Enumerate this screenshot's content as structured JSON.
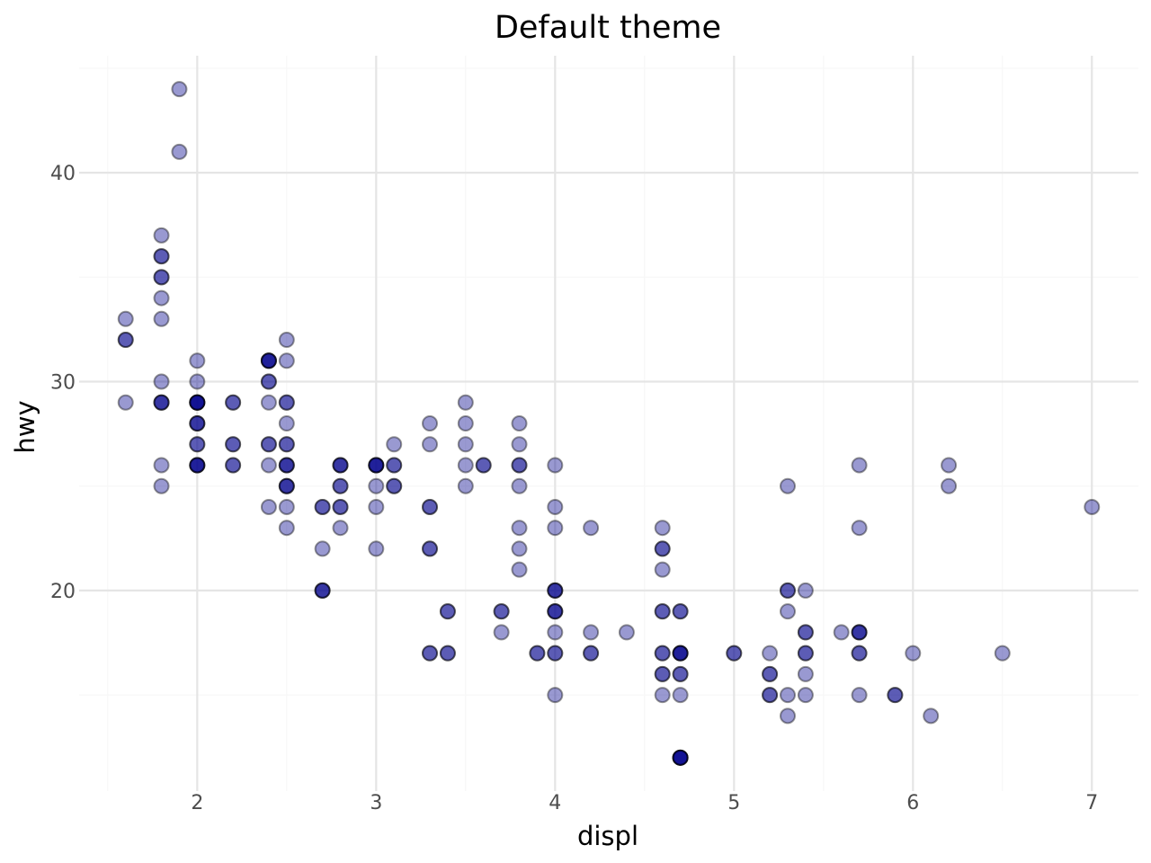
{
  "chart_data": {
    "type": "scatter",
    "title": "Default theme",
    "xlabel": "displ",
    "ylabel": "hwy",
    "xlim": [
      1.34,
      7.26
    ],
    "ylim": [
      10.4,
      45.6
    ],
    "x_ticks": [
      2,
      3,
      4,
      5,
      6,
      7
    ],
    "y_ticks": [
      20,
      30,
      40
    ],
    "grid": true,
    "point_color": "#00008b",
    "point_alpha": 0.4,
    "points": [
      {
        "x": 1.9,
        "y": 44
      },
      {
        "x": 1.9,
        "y": 41
      },
      {
        "x": 1.8,
        "y": 37
      },
      {
        "x": 1.8,
        "y": 36
      },
      {
        "x": 1.8,
        "y": 36
      },
      {
        "x": 1.8,
        "y": 35
      },
      {
        "x": 1.8,
        "y": 35
      },
      {
        "x": 1.8,
        "y": 34
      },
      {
        "x": 1.8,
        "y": 33
      },
      {
        "x": 1.6,
        "y": 33
      },
      {
        "x": 1.6,
        "y": 32
      },
      {
        "x": 1.6,
        "y": 32
      },
      {
        "x": 1.6,
        "y": 29
      },
      {
        "x": 1.8,
        "y": 30
      },
      {
        "x": 1.8,
        "y": 29
      },
      {
        "x": 1.8,
        "y": 29
      },
      {
        "x": 1.8,
        "y": 29
      },
      {
        "x": 1.8,
        "y": 26
      },
      {
        "x": 1.8,
        "y": 25
      },
      {
        "x": 2.0,
        "y": 31
      },
      {
        "x": 2.0,
        "y": 30
      },
      {
        "x": 2.0,
        "y": 29
      },
      {
        "x": 2.0,
        "y": 29
      },
      {
        "x": 2.0,
        "y": 29
      },
      {
        "x": 2.0,
        "y": 29
      },
      {
        "x": 2.0,
        "y": 29
      },
      {
        "x": 2.0,
        "y": 28
      },
      {
        "x": 2.0,
        "y": 28
      },
      {
        "x": 2.0,
        "y": 28
      },
      {
        "x": 2.0,
        "y": 27
      },
      {
        "x": 2.0,
        "y": 27
      },
      {
        "x": 2.0,
        "y": 26
      },
      {
        "x": 2.0,
        "y": 26
      },
      {
        "x": 2.0,
        "y": 26
      },
      {
        "x": 2.0,
        "y": 26
      },
      {
        "x": 2.2,
        "y": 29
      },
      {
        "x": 2.2,
        "y": 29
      },
      {
        "x": 2.2,
        "y": 27
      },
      {
        "x": 2.2,
        "y": 27
      },
      {
        "x": 2.2,
        "y": 26
      },
      {
        "x": 2.2,
        "y": 26
      },
      {
        "x": 2.4,
        "y": 31
      },
      {
        "x": 2.4,
        "y": 31
      },
      {
        "x": 2.4,
        "y": 31
      },
      {
        "x": 2.4,
        "y": 31
      },
      {
        "x": 2.4,
        "y": 30
      },
      {
        "x": 2.4,
        "y": 30
      },
      {
        "x": 2.4,
        "y": 29
      },
      {
        "x": 2.4,
        "y": 27
      },
      {
        "x": 2.4,
        "y": 27
      },
      {
        "x": 2.4,
        "y": 26
      },
      {
        "x": 2.4,
        "y": 24
      },
      {
        "x": 2.5,
        "y": 32
      },
      {
        "x": 2.5,
        "y": 31
      },
      {
        "x": 2.5,
        "y": 29
      },
      {
        "x": 2.5,
        "y": 29
      },
      {
        "x": 2.5,
        "y": 28
      },
      {
        "x": 2.5,
        "y": 27
      },
      {
        "x": 2.5,
        "y": 27
      },
      {
        "x": 2.5,
        "y": 26
      },
      {
        "x": 2.5,
        "y": 26
      },
      {
        "x": 2.5,
        "y": 26
      },
      {
        "x": 2.5,
        "y": 25
      },
      {
        "x": 2.5,
        "y": 25
      },
      {
        "x": 2.5,
        "y": 25
      },
      {
        "x": 2.5,
        "y": 24
      },
      {
        "x": 2.5,
        "y": 23
      },
      {
        "x": 2.7,
        "y": 24
      },
      {
        "x": 2.7,
        "y": 24
      },
      {
        "x": 2.7,
        "y": 22
      },
      {
        "x": 2.7,
        "y": 20
      },
      {
        "x": 2.7,
        "y": 20
      },
      {
        "x": 2.7,
        "y": 20
      },
      {
        "x": 2.8,
        "y": 26
      },
      {
        "x": 2.8,
        "y": 26
      },
      {
        "x": 2.8,
        "y": 26
      },
      {
        "x": 2.8,
        "y": 25
      },
      {
        "x": 2.8,
        "y": 25
      },
      {
        "x": 2.8,
        "y": 24
      },
      {
        "x": 2.8,
        "y": 24
      },
      {
        "x": 2.8,
        "y": 23
      },
      {
        "x": 3.0,
        "y": 26
      },
      {
        "x": 3.0,
        "y": 26
      },
      {
        "x": 3.0,
        "y": 26
      },
      {
        "x": 3.0,
        "y": 26
      },
      {
        "x": 3.0,
        "y": 25
      },
      {
        "x": 3.0,
        "y": 24
      },
      {
        "x": 3.0,
        "y": 22
      },
      {
        "x": 3.1,
        "y": 27
      },
      {
        "x": 3.1,
        "y": 26
      },
      {
        "x": 3.1,
        "y": 26
      },
      {
        "x": 3.1,
        "y": 25
      },
      {
        "x": 3.1,
        "y": 25
      },
      {
        "x": 3.3,
        "y": 28
      },
      {
        "x": 3.3,
        "y": 27
      },
      {
        "x": 3.3,
        "y": 24
      },
      {
        "x": 3.3,
        "y": 24
      },
      {
        "x": 3.3,
        "y": 22
      },
      {
        "x": 3.3,
        "y": 22
      },
      {
        "x": 3.3,
        "y": 17
      },
      {
        "x": 3.3,
        "y": 17
      },
      {
        "x": 3.4,
        "y": 19
      },
      {
        "x": 3.4,
        "y": 19
      },
      {
        "x": 3.4,
        "y": 17
      },
      {
        "x": 3.4,
        "y": 17
      },
      {
        "x": 3.5,
        "y": 29
      },
      {
        "x": 3.5,
        "y": 28
      },
      {
        "x": 3.5,
        "y": 27
      },
      {
        "x": 3.5,
        "y": 26
      },
      {
        "x": 3.5,
        "y": 25
      },
      {
        "x": 3.6,
        "y": 26
      },
      {
        "x": 3.6,
        "y": 26
      },
      {
        "x": 3.7,
        "y": 19
      },
      {
        "x": 3.7,
        "y": 19
      },
      {
        "x": 3.7,
        "y": 18
      },
      {
        "x": 3.8,
        "y": 28
      },
      {
        "x": 3.8,
        "y": 27
      },
      {
        "x": 3.8,
        "y": 26
      },
      {
        "x": 3.8,
        "y": 26
      },
      {
        "x": 3.8,
        "y": 25
      },
      {
        "x": 3.8,
        "y": 23
      },
      {
        "x": 3.8,
        "y": 22
      },
      {
        "x": 3.8,
        "y": 21
      },
      {
        "x": 3.9,
        "y": 17
      },
      {
        "x": 3.9,
        "y": 17
      },
      {
        "x": 4.0,
        "y": 26
      },
      {
        "x": 4.0,
        "y": 24
      },
      {
        "x": 4.0,
        "y": 23
      },
      {
        "x": 4.0,
        "y": 20
      },
      {
        "x": 4.0,
        "y": 20
      },
      {
        "x": 4.0,
        "y": 20
      },
      {
        "x": 4.0,
        "y": 19
      },
      {
        "x": 4.0,
        "y": 19
      },
      {
        "x": 4.0,
        "y": 19
      },
      {
        "x": 4.0,
        "y": 18
      },
      {
        "x": 4.0,
        "y": 17
      },
      {
        "x": 4.0,
        "y": 17
      },
      {
        "x": 4.0,
        "y": 15
      },
      {
        "x": 4.2,
        "y": 23
      },
      {
        "x": 4.2,
        "y": 18
      },
      {
        "x": 4.2,
        "y": 17
      },
      {
        "x": 4.2,
        "y": 17
      },
      {
        "x": 4.4,
        "y": 18
      },
      {
        "x": 4.6,
        "y": 23
      },
      {
        "x": 4.6,
        "y": 22
      },
      {
        "x": 4.6,
        "y": 22
      },
      {
        "x": 4.6,
        "y": 21
      },
      {
        "x": 4.6,
        "y": 19
      },
      {
        "x": 4.6,
        "y": 19
      },
      {
        "x": 4.6,
        "y": 17
      },
      {
        "x": 4.6,
        "y": 17
      },
      {
        "x": 4.6,
        "y": 16
      },
      {
        "x": 4.6,
        "y": 16
      },
      {
        "x": 4.6,
        "y": 15
      },
      {
        "x": 4.7,
        "y": 19
      },
      {
        "x": 4.7,
        "y": 19
      },
      {
        "x": 4.7,
        "y": 17
      },
      {
        "x": 4.7,
        "y": 17
      },
      {
        "x": 4.7,
        "y": 17
      },
      {
        "x": 4.7,
        "y": 17
      },
      {
        "x": 4.7,
        "y": 16
      },
      {
        "x": 4.7,
        "y": 16
      },
      {
        "x": 4.7,
        "y": 15
      },
      {
        "x": 4.7,
        "y": 12
      },
      {
        "x": 4.7,
        "y": 12
      },
      {
        "x": 4.7,
        "y": 12
      },
      {
        "x": 4.7,
        "y": 12
      },
      {
        "x": 4.7,
        "y": 12
      },
      {
        "x": 5.0,
        "y": 17
      },
      {
        "x": 5.0,
        "y": 17
      },
      {
        "x": 5.2,
        "y": 17
      },
      {
        "x": 5.2,
        "y": 16
      },
      {
        "x": 5.2,
        "y": 16
      },
      {
        "x": 5.2,
        "y": 15
      },
      {
        "x": 5.2,
        "y": 15
      },
      {
        "x": 5.3,
        "y": 25
      },
      {
        "x": 5.3,
        "y": 20
      },
      {
        "x": 5.3,
        "y": 20
      },
      {
        "x": 5.3,
        "y": 19
      },
      {
        "x": 5.3,
        "y": 15
      },
      {
        "x": 5.3,
        "y": 14
      },
      {
        "x": 5.4,
        "y": 20
      },
      {
        "x": 5.4,
        "y": 18
      },
      {
        "x": 5.4,
        "y": 18
      },
      {
        "x": 5.4,
        "y": 17
      },
      {
        "x": 5.4,
        "y": 17
      },
      {
        "x": 5.4,
        "y": 16
      },
      {
        "x": 5.4,
        "y": 15
      },
      {
        "x": 5.6,
        "y": 18
      },
      {
        "x": 5.7,
        "y": 26
      },
      {
        "x": 5.7,
        "y": 23
      },
      {
        "x": 5.7,
        "y": 18
      },
      {
        "x": 5.7,
        "y": 18
      },
      {
        "x": 5.7,
        "y": 18
      },
      {
        "x": 5.7,
        "y": 17
      },
      {
        "x": 5.7,
        "y": 17
      },
      {
        "x": 5.7,
        "y": 15
      },
      {
        "x": 5.9,
        "y": 15
      },
      {
        "x": 5.9,
        "y": 15
      },
      {
        "x": 6.0,
        "y": 17
      },
      {
        "x": 6.1,
        "y": 14
      },
      {
        "x": 6.2,
        "y": 26
      },
      {
        "x": 6.2,
        "y": 25
      },
      {
        "x": 6.5,
        "y": 17
      },
      {
        "x": 7.0,
        "y": 24
      }
    ]
  }
}
